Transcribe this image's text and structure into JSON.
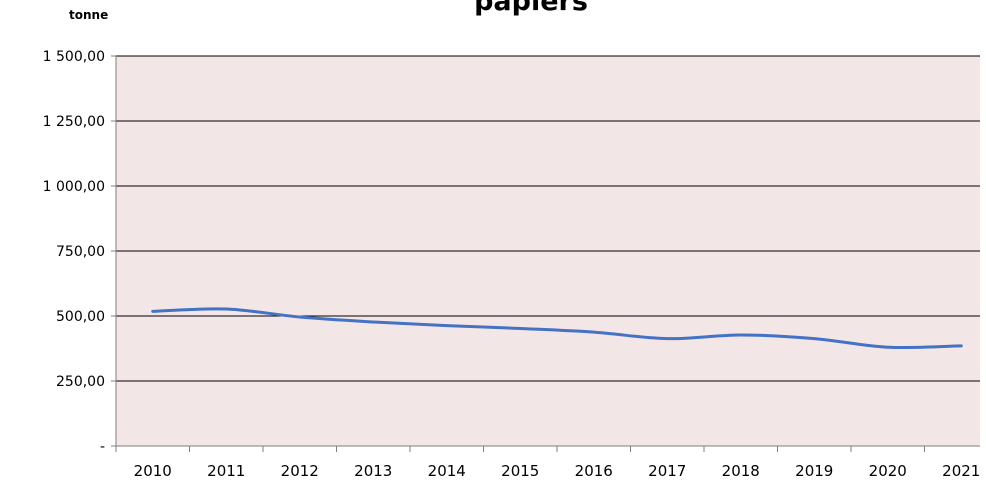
{
  "chart_data": {
    "type": "line",
    "title": "papiers",
    "ylabel": "tonne",
    "xlabel": "",
    "categories": [
      "2010",
      "2011",
      "2012",
      "2013",
      "2014",
      "2015",
      "2016",
      "2017",
      "2018",
      "2019",
      "2020",
      "2021"
    ],
    "series": [
      {
        "values": [
          518,
          527,
          496,
          477,
          463,
          452,
          438,
          413,
          427,
          413,
          380,
          385
        ]
      }
    ],
    "ylim": [
      0,
      1500
    ],
    "yticks": [
      0,
      250,
      500,
      750,
      1000,
      1250,
      1500
    ],
    "ytick_labels": [
      "-",
      "250,00",
      "500,00",
      "750,00",
      "1 000,00",
      "1 250,00",
      "1 500,00"
    ],
    "grid": true,
    "legend": "none",
    "colors": {
      "plot_background": "#f3e6e6",
      "line": "#4472c4",
      "grid": "#000000"
    }
  }
}
